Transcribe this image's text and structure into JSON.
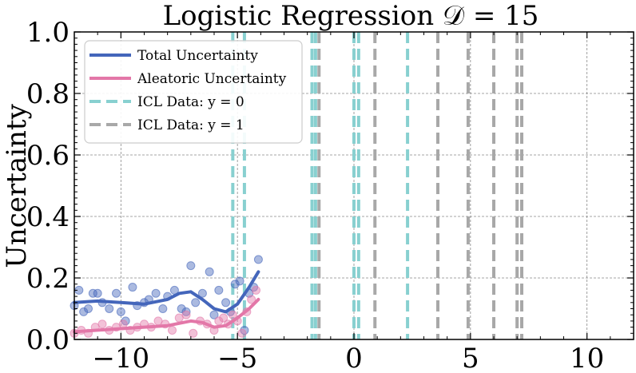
{
  "chart_data": {
    "type": "scatter",
    "title": "Logistic Regression 𝒟 = 15",
    "xlabel": "",
    "ylabel": "Uncertainty",
    "xlim": [
      -12,
      12
    ],
    "ylim": [
      0,
      1.0
    ],
    "x_ticks": [
      -10,
      -5,
      0,
      5,
      10
    ],
    "x_tick_labels": [
      "−10",
      "−5",
      "0",
      "5",
      "10"
    ],
    "y_ticks": [
      0,
      0.2,
      0.4,
      0.6,
      0.8,
      1.0
    ],
    "y_tick_labels": [
      "0.0",
      "0.2",
      "0.4",
      "0.6",
      "0.8",
      "1.0"
    ],
    "grid": true,
    "legend_position": "top-left",
    "colors": {
      "total": "#4466bb",
      "aleatoric": "#e377a8",
      "icl_y0": "#88d0d0",
      "icl_y1": "#a8a8a8"
    },
    "legend": [
      {
        "label": "Total Uncertainty",
        "series": "total",
        "style": "solid"
      },
      {
        "label": "Aleatoric Uncertainty",
        "series": "aleatoric",
        "style": "solid"
      },
      {
        "label": "ICL Data: y = 0",
        "series": "icl_y0",
        "style": "dashed"
      },
      {
        "label": "ICL Data: y = 1",
        "series": "icl_y1",
        "style": "dashed"
      }
    ],
    "series": [
      {
        "key": "total",
        "kind": "line",
        "x": [
          -12,
          -11,
          -10,
          -9,
          -8,
          -7.5,
          -7,
          -6.5,
          -6,
          -5.5,
          -5,
          -4.5,
          -4.1
        ],
        "y": [
          0.12,
          0.125,
          0.12,
          0.115,
          0.13,
          0.15,
          0.155,
          0.13,
          0.1,
          0.09,
          0.115,
          0.17,
          0.22
        ]
      },
      {
        "key": "aleatoric",
        "kind": "line",
        "x": [
          -12,
          -11,
          -10,
          -9,
          -8,
          -7,
          -6.5,
          -6,
          -5.5,
          -5,
          -4.5,
          -4.1
        ],
        "y": [
          0.025,
          0.03,
          0.035,
          0.04,
          0.045,
          0.06,
          0.055,
          0.04,
          0.045,
          0.07,
          0.1,
          0.13
        ]
      },
      {
        "key": "total",
        "kind": "scatter",
        "x": [
          -12.0,
          -11.8,
          -11.6,
          -11.4,
          -11.2,
          -11.0,
          -10.8,
          -10.5,
          -10.2,
          -10.0,
          -9.8,
          -9.5,
          -9.3,
          -9.0,
          -8.8,
          -8.5,
          -8.2,
          -8.0,
          -7.7,
          -7.4,
          -7.2,
          -7.0,
          -6.8,
          -6.5,
          -6.2,
          -6.0,
          -5.8,
          -5.5,
          -5.3,
          -5.1,
          -4.9,
          -4.7,
          -4.5,
          -4.3,
          -4.1
        ],
        "y": [
          0.11,
          0.16,
          0.09,
          0.1,
          0.15,
          0.15,
          0.12,
          0.1,
          0.15,
          0.09,
          0.06,
          0.17,
          0.11,
          0.12,
          0.13,
          0.15,
          0.1,
          0.14,
          0.16,
          0.1,
          0.09,
          0.24,
          0.12,
          0.15,
          0.22,
          0.08,
          0.16,
          0.12,
          0.09,
          0.18,
          0.19,
          0.03,
          0.15,
          0.17,
          0.26
        ]
      },
      {
        "key": "aleatoric",
        "kind": "scatter",
        "x": [
          -12.0,
          -11.7,
          -11.4,
          -11.1,
          -10.8,
          -10.5,
          -10.2,
          -9.9,
          -9.6,
          -9.3,
          -9.0,
          -8.7,
          -8.4,
          -8.1,
          -7.8,
          -7.5,
          -7.2,
          -6.9,
          -6.6,
          -6.3,
          -6.0,
          -5.8,
          -5.6,
          -5.4,
          -5.2,
          -5.0,
          -4.8,
          -4.6,
          -4.4,
          -4.2
        ],
        "y": [
          0.02,
          0.03,
          0.02,
          0.04,
          0.05,
          0.03,
          0.04,
          0.05,
          0.03,
          0.04,
          0.05,
          0.04,
          0.06,
          0.05,
          0.03,
          0.07,
          0.08,
          0.02,
          0.06,
          0.05,
          0.03,
          0.06,
          0.07,
          0.05,
          0.08,
          0.06,
          0.02,
          0.09,
          0.13,
          0.16
        ]
      }
    ],
    "icl_data": {
      "y0": [
        -5.2,
        -4.7,
        -1.8,
        -1.65,
        0.0,
        0.2,
        2.3
      ],
      "y1": [
        -1.5,
        0.9,
        3.6,
        4.9,
        6.0,
        7.0,
        7.2
      ]
    }
  }
}
